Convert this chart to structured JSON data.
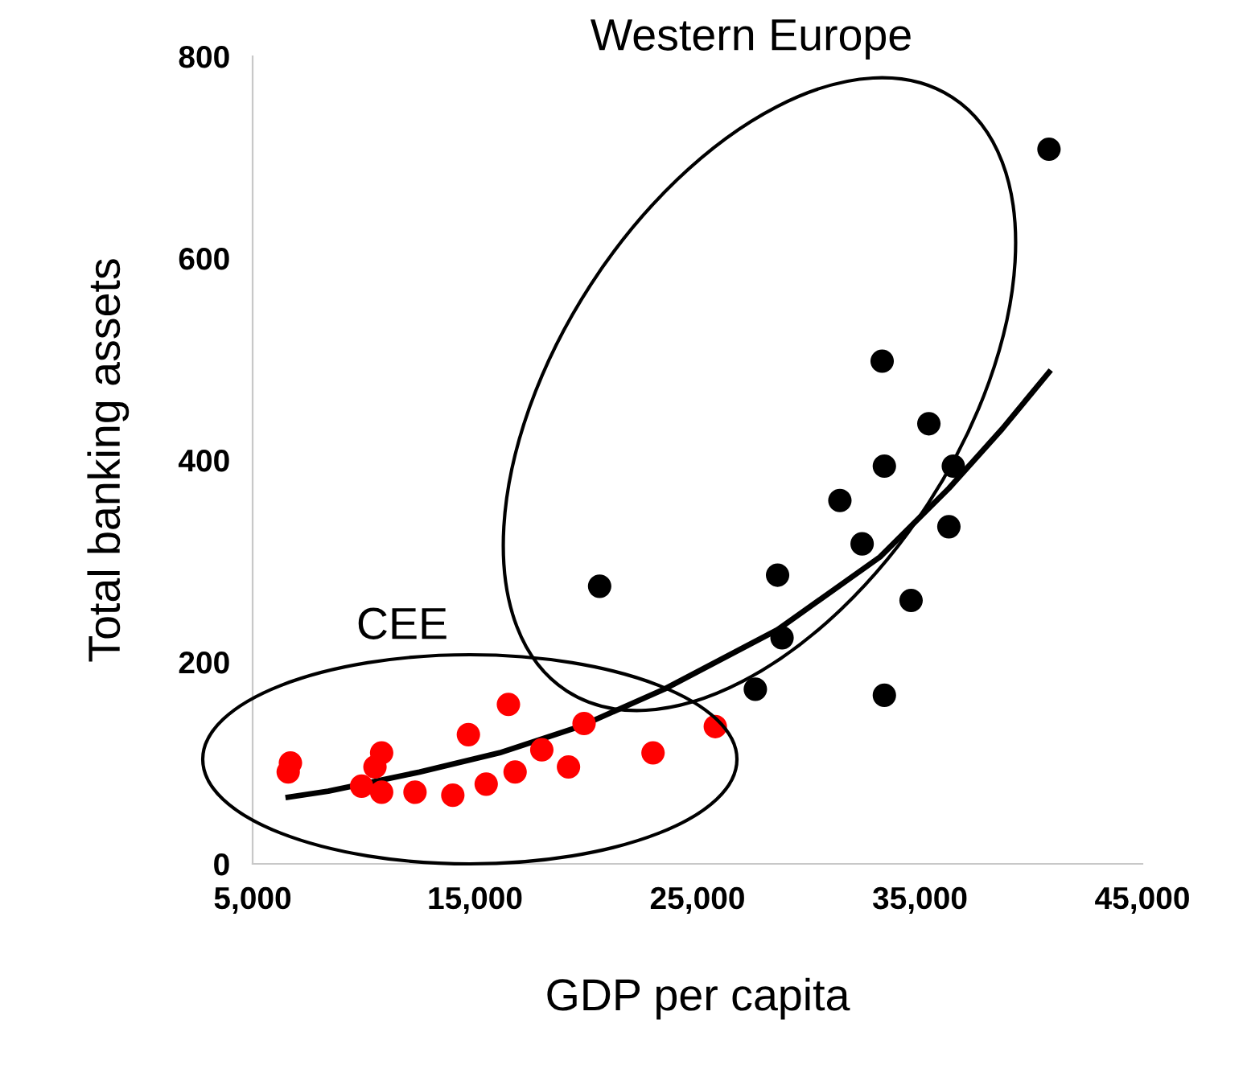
{
  "chart_data": {
    "type": "scatter",
    "xlabel": "GDP per capita",
    "ylabel": "Total banking assets",
    "xlim": [
      5000,
      45000
    ],
    "xticks": [
      {
        "value": 5000,
        "label": "5,000"
      },
      {
        "value": 15000,
        "label": "15,000"
      },
      {
        "value": 25000,
        "label": "25,000"
      },
      {
        "value": 35000,
        "label": "35,000"
      },
      {
        "value": 45000,
        "label": "45,000"
      }
    ],
    "ylim": [
      0,
      800
    ],
    "yticks": [
      0,
      200,
      400,
      600,
      800
    ],
    "grid": false,
    "marker": "circle",
    "annotations": [
      "CEE",
      "Western Europe"
    ],
    "series": [
      {
        "color": "#ff0000",
        "x": [
          6700,
          6600,
          10800,
          10500,
          9900,
          10800,
          12300,
          14000,
          15500,
          14700,
          16500,
          16800,
          18000,
          19200,
          19900,
          23000,
          25800
        ],
        "values": [
          100,
          91,
          110,
          96,
          77,
          71,
          71,
          68,
          79,
          128,
          158,
          91,
          113,
          96,
          139,
          110,
          136
        ]
      },
      {
        "color": "#000000",
        "x": [
          40800,
          33300,
          35400,
          33400,
          36500,
          31400,
          32400,
          36300,
          28600,
          20600,
          34600,
          28800,
          27600,
          33400
        ],
        "values": [
          708,
          498,
          436,
          394,
          394,
          360,
          317,
          334,
          286,
          275,
          261,
          224,
          173,
          167
        ]
      },
      {
        "type": "line",
        "color": "#000000",
        "marker": "none",
        "line_style": "solid",
        "x": [
          6600,
          8400,
          12500,
          16100,
          19700,
          23500,
          28600,
          33200,
          36300,
          38700,
          40800
        ],
        "values": [
          66,
          72,
          91,
          110,
          136,
          173,
          232,
          304,
          372,
          431,
          487
        ]
      }
    ]
  }
}
